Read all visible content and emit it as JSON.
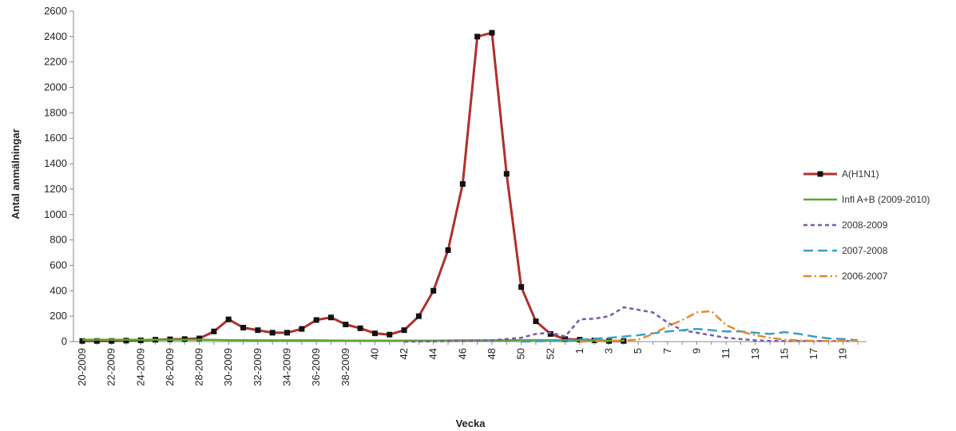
{
  "chart_data": {
    "type": "line",
    "xlabel": "Vecka",
    "ylabel": "Antal anmälningar",
    "ylim": [
      0,
      2600
    ],
    "yticks": [
      0,
      200,
      400,
      600,
      800,
      1000,
      1200,
      1400,
      1600,
      1800,
      2000,
      2200,
      2400,
      2600
    ],
    "xticks": [
      {
        "label": "20-2009",
        "week": 20
      },
      {
        "label": "22-2009",
        "week": 22
      },
      {
        "label": "24-2009",
        "week": 24
      },
      {
        "label": "26-2009",
        "week": 26
      },
      {
        "label": "28-2009",
        "week": 28
      },
      {
        "label": "30-2009",
        "week": 30
      },
      {
        "label": "32-2009",
        "week": 32
      },
      {
        "label": "34-2009",
        "week": 34
      },
      {
        "label": "36-2009",
        "week": 36
      },
      {
        "label": "38-2009",
        "week": 38
      },
      {
        "label": "40",
        "week": 40
      },
      {
        "label": "42",
        "week": 42
      },
      {
        "label": "44",
        "week": 44
      },
      {
        "label": "46",
        "week": 46
      },
      {
        "label": "48",
        "week": 48
      },
      {
        "label": "50",
        "week": 50
      },
      {
        "label": "52",
        "week": 52
      },
      {
        "label": "1",
        "week": 54
      },
      {
        "label": "3",
        "week": 56
      },
      {
        "label": "5",
        "week": 58
      },
      {
        "label": "7",
        "week": 60
      },
      {
        "label": "9",
        "week": 62
      },
      {
        "label": "11",
        "week": 64
      },
      {
        "label": "13",
        "week": 66
      },
      {
        "label": "15",
        "week": 68
      },
      {
        "label": "17",
        "week": 70
      },
      {
        "label": "19",
        "week": 72
      }
    ],
    "grid": false,
    "legend_position": "right",
    "series": [
      {
        "name": "A(H1N1)",
        "color": "#b0302a",
        "style": "solid-markers",
        "x": [
          20,
          21,
          22,
          23,
          24,
          25,
          26,
          27,
          28,
          29,
          30,
          31,
          32,
          33,
          34,
          35,
          36,
          37,
          38,
          39,
          40,
          41,
          42,
          43,
          44,
          45,
          46,
          47,
          48,
          49,
          50,
          51,
          52,
          53,
          54,
          55,
          56,
          57
        ],
        "y": [
          5,
          5,
          5,
          8,
          10,
          15,
          18,
          20,
          25,
          80,
          175,
          110,
          90,
          70,
          70,
          100,
          170,
          190,
          135,
          105,
          65,
          55,
          90,
          200,
          400,
          720,
          1240,
          2400,
          2430,
          1320,
          430,
          160,
          60,
          20,
          15,
          10,
          5,
          5
        ]
      },
      {
        "name": "Infl A+B (2009-2010)",
        "color": "#5aa832",
        "style": "solid",
        "x": [
          20,
          22,
          24,
          26,
          28,
          30,
          32,
          34,
          36,
          38,
          40,
          42,
          44,
          46,
          48,
          50,
          52,
          54,
          56,
          57
        ],
        "y": [
          15,
          15,
          15,
          15,
          15,
          12,
          10,
          10,
          10,
          8,
          8,
          8,
          8,
          10,
          10,
          12,
          12,
          10,
          8,
          8
        ]
      },
      {
        "name": "2008-2009",
        "color": "#7a5aa8",
        "style": "dash",
        "x": [
          42,
          44,
          46,
          48,
          50,
          51,
          52,
          53,
          54,
          55,
          56,
          57,
          58,
          59,
          60,
          61,
          62,
          63,
          64,
          65,
          66,
          67,
          68,
          69,
          70,
          71,
          72,
          73
        ],
        "y": [
          0,
          2,
          5,
          10,
          30,
          60,
          70,
          40,
          175,
          180,
          200,
          270,
          250,
          230,
          150,
          90,
          70,
          50,
          30,
          20,
          10,
          5,
          5,
          5,
          5,
          5,
          5,
          5
        ]
      },
      {
        "name": "2007-2008",
        "color": "#3aa0c8",
        "style": "longdash",
        "x": [
          50,
          52,
          54,
          56,
          58,
          60,
          61,
          62,
          63,
          64,
          65,
          66,
          67,
          68,
          69,
          70,
          71,
          72,
          73
        ],
        "y": [
          0,
          5,
          15,
          30,
          50,
          80,
          90,
          100,
          90,
          80,
          80,
          70,
          60,
          75,
          60,
          40,
          25,
          20,
          10
        ]
      },
      {
        "name": "2006-2007",
        "color": "#e8882a",
        "style": "dashdot",
        "x": [
          54,
          56,
          58,
          59,
          60,
          61,
          62,
          63,
          64,
          65,
          66,
          67,
          68,
          69,
          70,
          71,
          72,
          73
        ],
        "y": [
          0,
          5,
          15,
          60,
          120,
          170,
          230,
          240,
          130,
          80,
          50,
          30,
          15,
          10,
          5,
          5,
          5,
          5
        ]
      }
    ]
  }
}
